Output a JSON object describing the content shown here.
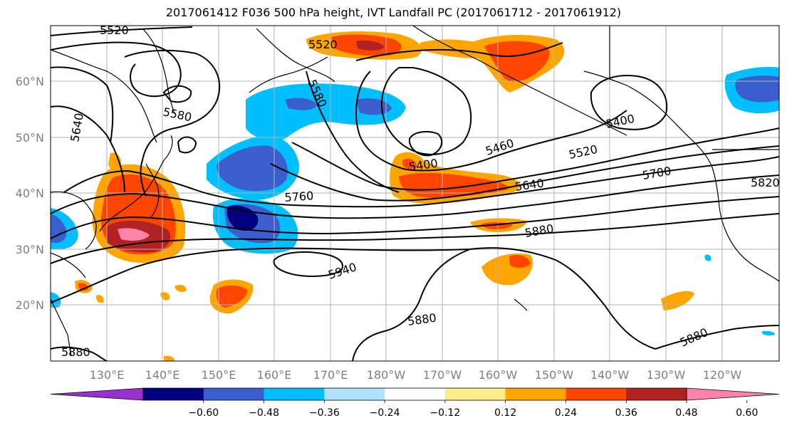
{
  "title": "2017061412 F036 500 hPa height, IVT Landfall PC (2017061712 - 2017061912)",
  "map": {
    "lon_ticks": [
      "130°E",
      "140°E",
      "150°E",
      "160°E",
      "170°E",
      "180°W",
      "170°W",
      "160°W",
      "150°W",
      "140°W",
      "130°W",
      "120°W"
    ],
    "lat_ticks": [
      "60°N",
      "50°N",
      "40°N",
      "30°N",
      "20°N"
    ],
    "contour_labels": [
      "5520",
      "5520",
      "5580",
      "5580",
      "5640",
      "5400",
      "5460",
      "5520",
      "5400",
      "5700",
      "5820",
      "5640",
      "5760",
      "5880",
      "5940",
      "5880",
      "5880",
      "5880"
    ]
  },
  "colorbar": {
    "colors": [
      "#9932cc",
      "#000080",
      "#3a5fcd",
      "#00bfff",
      "#b0e2ff",
      "#ffffff",
      "#ffec8b",
      "#ffa500",
      "#ff4500",
      "#b22222",
      "#ff82ab"
    ],
    "tick_labels": [
      "−0.60",
      "−0.48",
      "−0.36",
      "−0.24",
      "−0.12",
      "0.12",
      "0.24",
      "0.36",
      "0.48",
      "0.60"
    ]
  }
}
